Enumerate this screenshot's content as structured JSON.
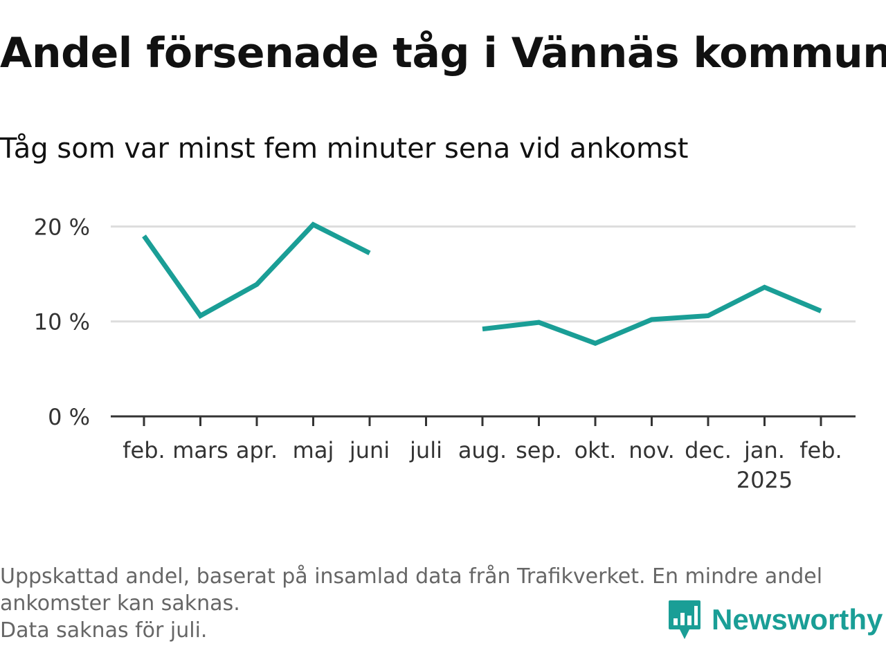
{
  "title": "Andel försenade tåg i Vännäs kommun",
  "subtitle": "Tåg som var minst fem minuter sena vid ankomst",
  "footnote": {
    "line1": "Uppskattad andel, baserat på insamlad data från Trafikverket. En mindre andel",
    "line2": "ankomster kan saknas.",
    "line3": "Data saknas för juli."
  },
  "brand": {
    "name": "Newsworthy",
    "icon": "newsworthy-logo-icon",
    "color": "#1a9e96"
  },
  "chart_data": {
    "type": "line",
    "title": "Andel försenade tåg i Vännäs kommun",
    "subtitle": "Tåg som var minst fem minuter sena vid ankomst",
    "xlabel": "",
    "ylabel": "",
    "categories": [
      "feb.",
      "mars",
      "apr.",
      "maj",
      "juni",
      "juli",
      "aug.",
      "sep.",
      "okt.",
      "nov.",
      "dec.",
      "jan.",
      "feb."
    ],
    "category_sublabels": [
      "",
      "",
      "",
      "",
      "",
      "",
      "",
      "",
      "",
      "",
      "",
      "2025",
      ""
    ],
    "series": [
      {
        "color": "#1a9e96",
        "values": [
          19.0,
          10.6,
          13.9,
          20.2,
          17.2,
          null,
          9.2,
          9.9,
          7.7,
          10.2,
          10.6,
          13.6,
          11.1
        ]
      }
    ],
    "yticks": [
      0,
      10,
      20
    ],
    "ytick_labels": [
      "0 %",
      "10 %",
      "20 %"
    ],
    "ylim": [
      0,
      22
    ],
    "grid": true,
    "gridColor": "#dddddd",
    "axisColor": "#333333"
  }
}
